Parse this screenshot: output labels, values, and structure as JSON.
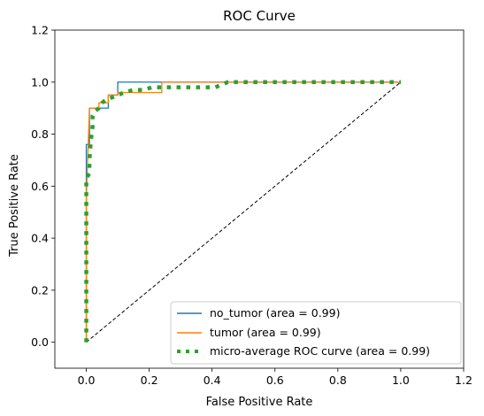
{
  "chart_data": {
    "type": "line",
    "title": "ROC Curve",
    "xlabel": "False Positive Rate",
    "ylabel": "True Positive Rate",
    "xlim": [
      -0.1,
      1.2
    ],
    "ylim": [
      -0.1,
      1.2
    ],
    "xticks": [
      0.0,
      0.2,
      0.4,
      0.6,
      0.8,
      1.0,
      1.2
    ],
    "yticks": [
      0.0,
      0.2,
      0.4,
      0.6,
      0.8,
      1.0,
      1.2
    ],
    "tick_labels_x": [
      "0.0",
      "0.2",
      "0.4",
      "0.6",
      "0.8",
      "1.0",
      "1.2"
    ],
    "tick_labels_y": [
      "0.0",
      "0.2",
      "0.4",
      "0.6",
      "0.8",
      "1.0",
      "1.2"
    ],
    "grid": false,
    "legend_position": "lower-right",
    "series": [
      {
        "name": "no_tumor (area = 0.99)",
        "color": "#1f77b4",
        "style": "solid",
        "x": [
          0.0,
          0.0,
          0.0,
          0.0,
          0.0,
          0.01,
          0.01,
          0.03,
          0.03,
          0.07,
          0.07,
          0.1,
          0.1,
          1.0
        ],
        "y": [
          0.0,
          0.3,
          0.55,
          0.76,
          0.76,
          0.76,
          0.9,
          0.9,
          0.9,
          0.9,
          0.95,
          0.95,
          1.0,
          1.0
        ]
      },
      {
        "name": "tumor (area = 0.99)",
        "color": "#ff7f0e",
        "style": "solid",
        "x": [
          0.0,
          0.0,
          0.0,
          0.0,
          0.0,
          0.01,
          0.04,
          0.04,
          0.07,
          0.07,
          0.1,
          0.1,
          0.24,
          0.24,
          1.0
        ],
        "y": [
          0.0,
          0.2,
          0.45,
          0.55,
          0.55,
          0.9,
          0.9,
          0.92,
          0.92,
          0.95,
          0.95,
          0.96,
          0.96,
          1.0,
          1.0
        ]
      },
      {
        "name": "micro-average ROC curve (area = 0.99)",
        "color": "#2ca02c",
        "style": "dotted",
        "x": [
          0.0,
          0.0,
          0.0,
          0.0,
          0.0,
          0.0,
          0.0,
          0.0,
          0.0,
          0.0,
          0.0,
          0.01,
          0.01,
          0.015,
          0.02,
          0.02,
          0.02,
          0.03,
          0.04,
          0.05,
          0.06,
          0.08,
          0.1,
          0.12,
          0.15,
          0.18,
          0.21,
          0.25,
          0.29,
          0.33,
          0.37,
          0.41,
          0.45,
          0.5,
          0.55,
          0.6,
          0.65,
          0.7,
          0.75,
          0.8,
          0.85,
          0.9,
          0.95,
          1.0
        ],
        "y": [
          0.0,
          0.06,
          0.12,
          0.18,
          0.25,
          0.31,
          0.38,
          0.44,
          0.51,
          0.57,
          0.63,
          0.65,
          0.7,
          0.78,
          0.83,
          0.86,
          0.87,
          0.89,
          0.9,
          0.92,
          0.93,
          0.94,
          0.95,
          0.96,
          0.97,
          0.97,
          0.98,
          0.98,
          0.98,
          0.98,
          0.98,
          0.98,
          1.0,
          1.0,
          1.0,
          1.0,
          1.0,
          1.0,
          1.0,
          1.0,
          1.0,
          1.0,
          1.0,
          1.0
        ]
      }
    ],
    "reference_line": {
      "color": "#000000",
      "style": "dashed",
      "x": [
        0.0,
        1.0
      ],
      "y": [
        0.0,
        1.0
      ]
    }
  }
}
